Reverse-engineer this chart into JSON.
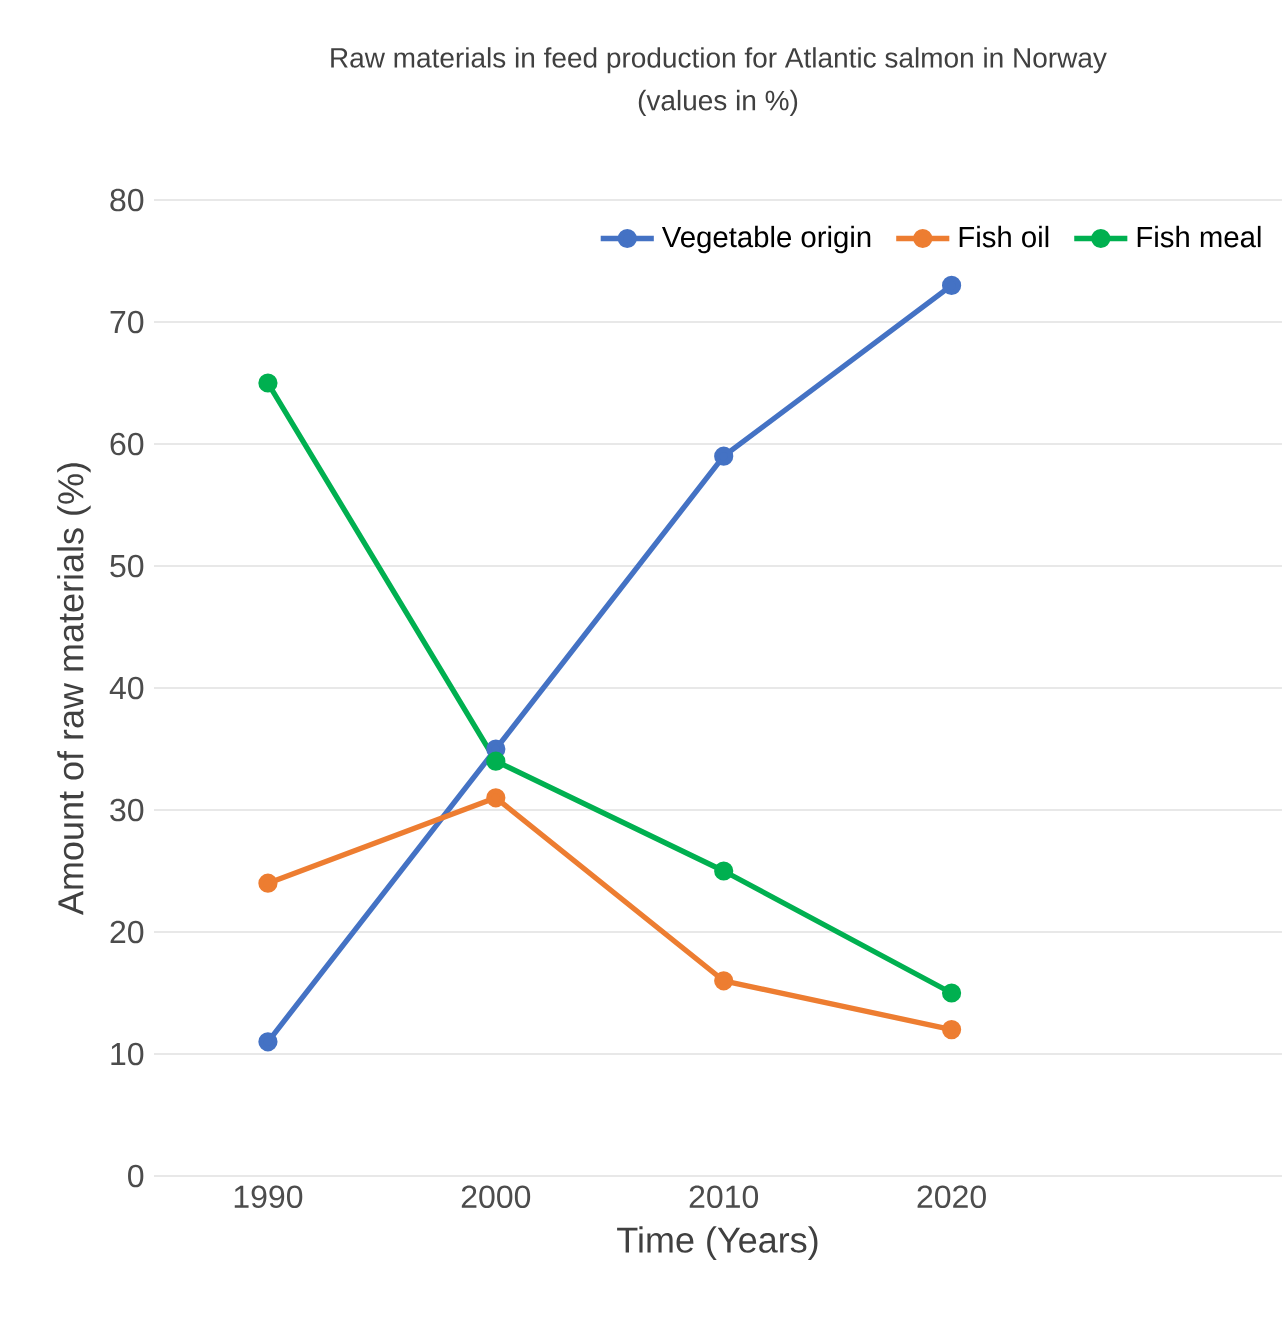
{
  "chart_data": {
    "type": "line",
    "title": "Raw materials in feed production for Atlantic salmon in Norway",
    "subtitle": "(values in %)",
    "xlabel": "Time (Years)",
    "ylabel": "Amount of raw materials (%)",
    "categories": [
      "1990",
      "2000",
      "2010",
      "2020"
    ],
    "series": [
      {
        "name": "Vegetable origin",
        "color": "#4472c4",
        "values": [
          11,
          35,
          59,
          73
        ]
      },
      {
        "name": "Fish oil",
        "color": "#ed7d31",
        "values": [
          24,
          31,
          16,
          12
        ]
      },
      {
        "name": "Fish meal",
        "color": "#00b050",
        "values": [
          65,
          34,
          25,
          15
        ]
      }
    ],
    "ylim": [
      0,
      80
    ],
    "yticks": [
      0,
      10,
      20,
      30,
      40,
      50,
      60,
      70,
      80
    ],
    "grid": "y",
    "legend": "top right",
    "marker": "circle",
    "line_style": "solid"
  }
}
